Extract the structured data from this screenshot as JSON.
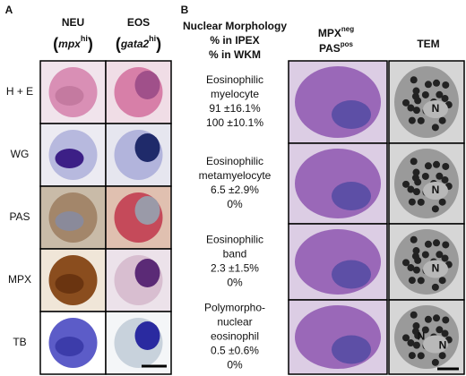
{
  "panel_a": {
    "label": "A",
    "columns": [
      {
        "name": "NEU",
        "prefix": "(",
        "gene": "mpx",
        "sup": "hi",
        "suffix": ")"
      },
      {
        "name": "EOS",
        "prefix": "(",
        "gene": "gata2",
        "sup": "hi",
        "suffix": ")"
      }
    ],
    "rows": [
      "H + E",
      "WG",
      "PAS",
      "MPX",
      "TB"
    ]
  },
  "panel_b": {
    "label": "B",
    "header": {
      "title": "Nuclear Morphology",
      "ipex": "% in IPEX",
      "wkm": "% in WKM",
      "stain1": "MPX",
      "stain1_sup": "neg",
      "stain2": "PAS",
      "stain2_sup": "pos",
      "tem": "TEM"
    },
    "nucleus_label": "N",
    "rows": [
      {
        "name": [
          "Eosinophilic",
          "myelocyte"
        ],
        "ipex": "91 ±16.1%",
        "wkm": "100 ±10.1%"
      },
      {
        "name": [
          "Eosinophilic",
          "metamyelocyte"
        ],
        "ipex": "6.5 ±2.9%",
        "wkm": "0%"
      },
      {
        "name": [
          "Eosinophilic",
          "band"
        ],
        "ipex": "2.3 ±1.5%",
        "wkm": "0%"
      },
      {
        "name": [
          "Polymorpho-",
          "nuclear",
          "eosinophil"
        ],
        "ipex": "0.5 ±0.6%",
        "wkm": "0%"
      }
    ]
  }
}
